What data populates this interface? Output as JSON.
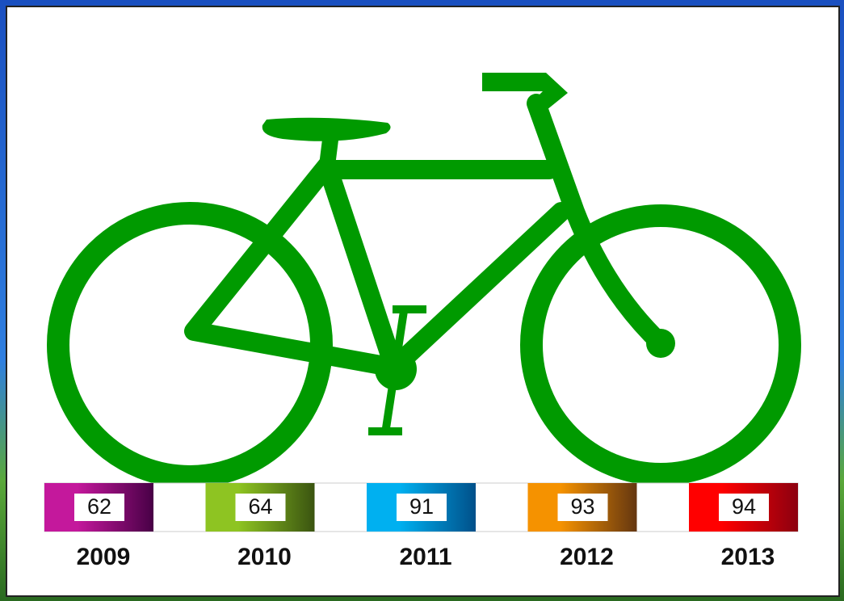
{
  "legend": [
    {
      "year": "2009",
      "value": 62,
      "color": "#c4189c",
      "dark": "#480046"
    },
    {
      "year": "2010",
      "value": 64,
      "color": "#8ec422",
      "dark": "#3a5410"
    },
    {
      "year": "2011",
      "value": 91,
      "color": "#00b0f0",
      "dark": "#00508a"
    },
    {
      "year": "2012",
      "value": 93,
      "color": "#f59200",
      "dark": "#643610"
    },
    {
      "year": "2013",
      "value": 94,
      "color": "#ff0000",
      "dark": "#8c0010"
    }
  ]
}
